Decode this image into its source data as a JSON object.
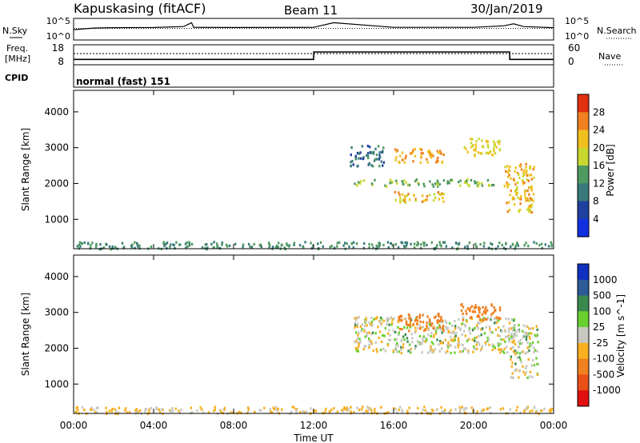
{
  "header": {
    "title": "Kapuskasing (fitACF)",
    "beam": "Beam 11",
    "date": "30/Jan/2019"
  },
  "sky_panel": {
    "left_label": "N.Sky",
    "left_ticks": [
      "10^5",
      "10^0"
    ],
    "right_label": "N.Search",
    "right_ticks": [
      "10^5",
      "10^0"
    ]
  },
  "freq_panel": {
    "left_label_1": "Freq.",
    "left_label_2": "[MHz]",
    "left_ticks": [
      "18",
      "8"
    ],
    "right_label": "Nave",
    "right_ticks": [
      "60",
      "0"
    ],
    "cpid_label": "CPID",
    "cpid_value": "normal (fast) 151"
  },
  "power_panel": {
    "ylabel": "Slant Range [km]",
    "yticks": [
      "4000",
      "3000",
      "2000",
      "1000"
    ],
    "colorbar_label": "Power [dB]",
    "colorbar_ticks": [
      "28",
      "24",
      "20",
      "16",
      "12",
      "8",
      "4"
    ],
    "colors": [
      "#1030e0",
      "#2040a0",
      "#3a7a7a",
      "#4f9a60",
      "#c8d830",
      "#f0c020",
      "#f08020",
      "#e03010"
    ]
  },
  "velocity_panel": {
    "ylabel": "Slant Range [km]",
    "yticks": [
      "4000",
      "3000",
      "2000",
      "1000"
    ],
    "colorbar_label": "Velocity [m s^-1]",
    "colorbar_ticks": [
      "1000",
      "500",
      "100",
      "25",
      "-25",
      "-100",
      "-500",
      "-1000"
    ],
    "colors": [
      "#1030c0",
      "#2e5a98",
      "#3a8a50",
      "#6ad030",
      "#c8c8c0",
      "#f8b020",
      "#f08020",
      "#e85018",
      "#e01010"
    ]
  },
  "xaxis": {
    "ticks": [
      "00:00",
      "04:00",
      "08:00",
      "12:00",
      "16:00",
      "20:00",
      "00:00"
    ],
    "label": "Time UT"
  },
  "chart_data": [
    {
      "type": "line",
      "title": "Kapuskasing (fitACF)",
      "panel": "N.Sky / N.Search",
      "x": [
        0,
        1,
        2,
        4,
        5.5,
        5.9,
        6,
        8,
        12,
        13,
        16,
        20,
        21.5,
        22,
        22.5,
        24
      ],
      "series": [
        {
          "name": "N.Sky",
          "values": [
            300,
            800,
            1000,
            1100,
            2000,
            20000,
            1200,
            1100,
            1200,
            20000,
            1200,
            1200,
            3000,
            10000,
            2000,
            1000
          ]
        }
      ],
      "ylim": [
        1,
        100000
      ]
    },
    {
      "type": "line",
      "panel": "Freq. [MHz] / Nave",
      "x": [
        0,
        12,
        12.01,
        21.8,
        21.81,
        24
      ],
      "series": [
        {
          "name": "Freq.",
          "values": [
            10.5,
            10.5,
            14.5,
            14.5,
            10.5,
            10.5
          ]
        },
        {
          "name": "Nave",
          "values": [
            38,
            38,
            38,
            38,
            38,
            38
          ]
        }
      ],
      "ylim": [
        8,
        18
      ]
    },
    {
      "type": "heatmap",
      "title": "Power [dB]",
      "xlabel": "Time UT",
      "ylabel": "Slant Range [km]",
      "xlim": [
        0,
        24
      ],
      "ylim": [
        180,
        4600
      ],
      "regions": [
        {
          "t0": 0.0,
          "t1": 24.0,
          "r0": 200,
          "r1": 400,
          "value": 10
        },
        {
          "t0": 13.8,
          "t1": 15.5,
          "r0": 2500,
          "r1": 3100,
          "value": 8
        },
        {
          "t0": 16.0,
          "t1": 18.5,
          "r0": 2600,
          "r1": 3000,
          "value": 22
        },
        {
          "t0": 14.0,
          "t1": 21.0,
          "r0": 1950,
          "r1": 2150,
          "value": 14
        },
        {
          "t0": 16.0,
          "t1": 18.5,
          "r0": 1500,
          "r1": 1800,
          "value": 20
        },
        {
          "t0": 19.5,
          "t1": 21.3,
          "r0": 2800,
          "r1": 3300,
          "value": 18
        },
        {
          "t0": 21.5,
          "t1": 23.0,
          "r0": 1200,
          "r1": 2600,
          "value": 20
        }
      ]
    },
    {
      "type": "heatmap",
      "title": "Velocity [m s^-1]",
      "xlabel": "Time UT",
      "ylabel": "Slant Range [km]",
      "xlim": [
        0,
        24
      ],
      "ylim": [
        180,
        4600
      ],
      "regions": [
        {
          "t0": 0.0,
          "t1": 24.0,
          "r0": 200,
          "r1": 400,
          "value": -40
        },
        {
          "t0": 14.0,
          "t1": 22.0,
          "r0": 1900,
          "r1": 2900,
          "value": 0
        },
        {
          "t0": 16.2,
          "t1": 18.5,
          "r0": 2500,
          "r1": 3000,
          "value": -300
        },
        {
          "t0": 19.3,
          "t1": 21.3,
          "r0": 2800,
          "r1": 3300,
          "value": -400
        },
        {
          "t0": 21.8,
          "t1": 23.2,
          "r0": 1200,
          "r1": 2700,
          "value": 0
        }
      ]
    }
  ]
}
